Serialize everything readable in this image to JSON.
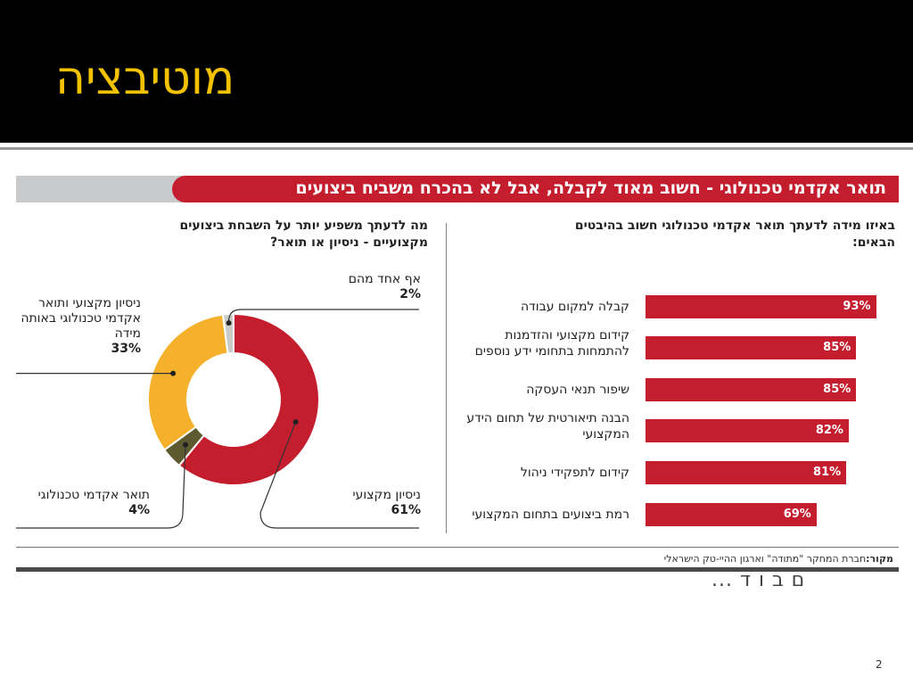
{
  "slide": {
    "title": "מוטיבציה",
    "page_number": "2",
    "stray_text": "ם ב ו ד ..."
  },
  "banner": {
    "text": "תואר אקדמי טכנולוגי - חשוב מאוד לקבלה, אבל לא בהכרח משביח ביצועים"
  },
  "source": {
    "label": "מקור:",
    "text": "חברת המחקר \"מתודה\" וארגון ההיי-טק הישראלי"
  },
  "colors": {
    "title": "#f2c200",
    "red": "#c41e2e",
    "yellow": "#f5b12b",
    "olive": "#5e5a30",
    "grey": "#c9ccc9"
  },
  "chart_data": [
    {
      "type": "bar",
      "title": "באיזו מידה לדעתך תואר אקדמי טכנולוגי חשוב בהיבטים הבאים:",
      "categories": [
        "קבלה למקום עבודה",
        "קידום מקצועי והזדמנות להתמחות בתחומי ידע נוספים",
        "שיפור תנאי העסקה",
        "הבנה תיאורטית של תחום הידע המקצועי",
        "קידום לתפקידי ניהול",
        "רמת ביצועים בתחום המקצועי"
      ],
      "values": [
        93,
        85,
        85,
        82,
        81,
        69
      ],
      "value_labels": [
        "93%",
        "85%",
        "85%",
        "82%",
        "81%",
        "69%"
      ],
      "xlim": [
        0,
        100
      ]
    },
    {
      "type": "pie",
      "title": "מה לדעתך משפיע יותר על השבחת ביצועים מקצועיים - ניסיון או תואר?",
      "slices": [
        {
          "label": "ניסיון מקצועי",
          "value": 61,
          "value_label": "61%",
          "color": "#c41e2e"
        },
        {
          "label": "תואר אקדמי טכנולוגי",
          "value": 4,
          "value_label": "4%",
          "color": "#5e5a30"
        },
        {
          "label": "ניסיון מקצועי ותואר אקדמי טכנולוגי באותה מידה",
          "value": 33,
          "value_label": "33%",
          "color": "#f5b12b"
        },
        {
          "label": "אף אחד מהם",
          "value": 2,
          "value_label": "2%",
          "color": "#c9ccc9"
        }
      ]
    }
  ]
}
